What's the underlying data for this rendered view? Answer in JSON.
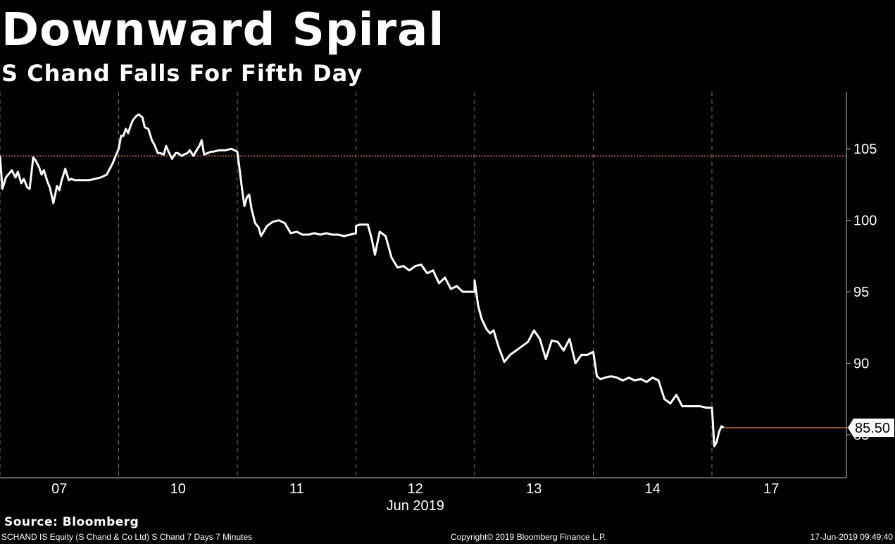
{
  "header": {
    "title": "Downward Spiral",
    "subtitle": "S Chand Falls For Fifth Day"
  },
  "footer": {
    "source": "Source: Bloomberg",
    "security": "SCHAND IS Equity (S Chand & Co Ltd) S Chand 7 Days 7 Minutes",
    "copyright": "Copyright© 2019 Bloomberg Finance L.P.",
    "timestamp": "17-Jun-2019 09:49:40"
  },
  "chart_data": {
    "type": "line",
    "xlabel": "Jun 2019",
    "ylabel": "",
    "ylim": [
      82,
      109
    ],
    "y_ticks": [
      85,
      90,
      95,
      100,
      105
    ],
    "x_tick_labels": [
      "07",
      "10",
      "11",
      "12",
      "13",
      "14",
      "17"
    ],
    "reference_line": {
      "value": 104.5,
      "color": "#e8825a",
      "style": "dotted"
    },
    "last_value_label": "85.50",
    "colors": {
      "background": "#000000",
      "line": "#ffffff",
      "grid": "#777777",
      "last_value_line": "#e8825a"
    },
    "grid": "vertical-dashed-session-separators",
    "series": [
      {
        "x": [
          0,
          0.02,
          0.05,
          0.08,
          0.1,
          0.13,
          0.15,
          0.18,
          0.2,
          0.23,
          0.25,
          0.28,
          0.3,
          0.33,
          0.35,
          0.37,
          0.4,
          0.42,
          0.45,
          0.48,
          0.5,
          0.52,
          0.55,
          0.58,
          0.6,
          0.63,
          0.65,
          0.68,
          0.7,
          0.75,
          0.8,
          0.85,
          0.9,
          0.95,
          1.0,
          1.0,
          1.02,
          1.04,
          1.06,
          1.08,
          1.1,
          1.12,
          1.15,
          1.17,
          1.2,
          1.22,
          1.25,
          1.28,
          1.3,
          1.33,
          1.35,
          1.38,
          1.4,
          1.42,
          1.45,
          1.48,
          1.5,
          1.53,
          1.55,
          1.58,
          1.6,
          1.63,
          1.65,
          1.68,
          1.7,
          1.72,
          1.75,
          1.78,
          1.8,
          1.85,
          1.9,
          1.95,
          2.0,
          2.0,
          2.02,
          2.04,
          2.06,
          2.08,
          2.1,
          2.12,
          2.15,
          2.18,
          2.2,
          2.25,
          2.3,
          2.35,
          2.4,
          2.45,
          2.5,
          2.55,
          2.6,
          2.65,
          2.7,
          2.75,
          2.8,
          2.85,
          2.9,
          2.95,
          3.0,
          3.0,
          3.03,
          3.06,
          3.1,
          3.13,
          3.16,
          3.2,
          3.25,
          3.3,
          3.35,
          3.4,
          3.45,
          3.5,
          3.55,
          3.6,
          3.65,
          3.7,
          3.75,
          3.8,
          3.85,
          3.9,
          3.95,
          4.0,
          4.0,
          4.03,
          4.06,
          4.1,
          4.13,
          4.16,
          4.2,
          4.25,
          4.3,
          4.35,
          4.4,
          4.45,
          4.5,
          4.55,
          4.6,
          4.65,
          4.7,
          4.75,
          4.8,
          4.85,
          4.9,
          4.95,
          5.0,
          5.0,
          5.03,
          5.06,
          5.1,
          5.15,
          5.2,
          5.25,
          5.3,
          5.35,
          5.4,
          5.45,
          5.5,
          5.55,
          5.6,
          5.65,
          5.7,
          5.75,
          5.8,
          5.85,
          5.9,
          5.95,
          6.0,
          6.0,
          6.02,
          6.04,
          6.06,
          6.08,
          6.1
        ],
        "y": [
          104.5,
          102.2,
          103.0,
          103.3,
          103.5,
          103.0,
          103.4,
          102.6,
          102.9,
          102.3,
          102.2,
          104.4,
          104.2,
          103.7,
          103.2,
          103.5,
          102.7,
          102.3,
          101.2,
          102.4,
          102.1,
          102.8,
          103.6,
          102.8,
          102.9,
          102.8,
          102.8,
          102.8,
          102.8,
          102.8,
          102.9,
          103.0,
          103.2,
          104.0,
          105.0,
          105.0,
          105.9,
          105.9,
          106.4,
          106.1,
          106.6,
          107.0,
          107.3,
          107.4,
          107.2,
          106.5,
          106.4,
          105.6,
          105.3,
          104.7,
          104.7,
          104.6,
          105.2,
          104.8,
          104.3,
          104.7,
          104.7,
          104.5,
          104.6,
          104.7,
          104.9,
          104.5,
          104.8,
          105.2,
          105.6,
          104.6,
          104.7,
          104.8,
          104.8,
          104.9,
          104.9,
          105.0,
          104.8,
          104.8,
          103.5,
          102.2,
          101.0,
          101.6,
          101.8,
          100.8,
          99.8,
          99.5,
          98.9,
          99.6,
          99.9,
          100.0,
          99.8,
          99.1,
          99.2,
          99.0,
          99.0,
          99.1,
          99.0,
          99.1,
          99.0,
          99.0,
          98.9,
          99.0,
          99.1,
          99.6,
          99.7,
          99.7,
          99.7,
          98.8,
          97.6,
          99.2,
          98.9,
          97.4,
          96.7,
          96.8,
          96.5,
          96.8,
          96.9,
          96.3,
          96.5,
          95.6,
          96.0,
          95.2,
          95.4,
          95.0,
          95.0,
          95.0,
          95.8,
          94.0,
          93.1,
          92.4,
          92.1,
          92.3,
          91.2,
          90.1,
          90.6,
          90.9,
          91.2,
          91.5,
          92.3,
          91.7,
          90.3,
          91.6,
          91.5,
          90.9,
          91.7,
          90.0,
          90.6,
          90.6,
          90.8,
          90.8,
          89.1,
          88.9,
          89.0,
          89.1,
          89.0,
          88.8,
          89.0,
          88.8,
          88.9,
          88.7,
          89.0,
          88.8,
          87.5,
          87.2,
          87.8,
          87.0,
          87.0,
          87.0,
          87.0,
          86.9,
          86.9,
          86.9,
          84.2,
          84.5,
          85.2,
          85.6,
          85.5
        ]
      }
    ]
  }
}
